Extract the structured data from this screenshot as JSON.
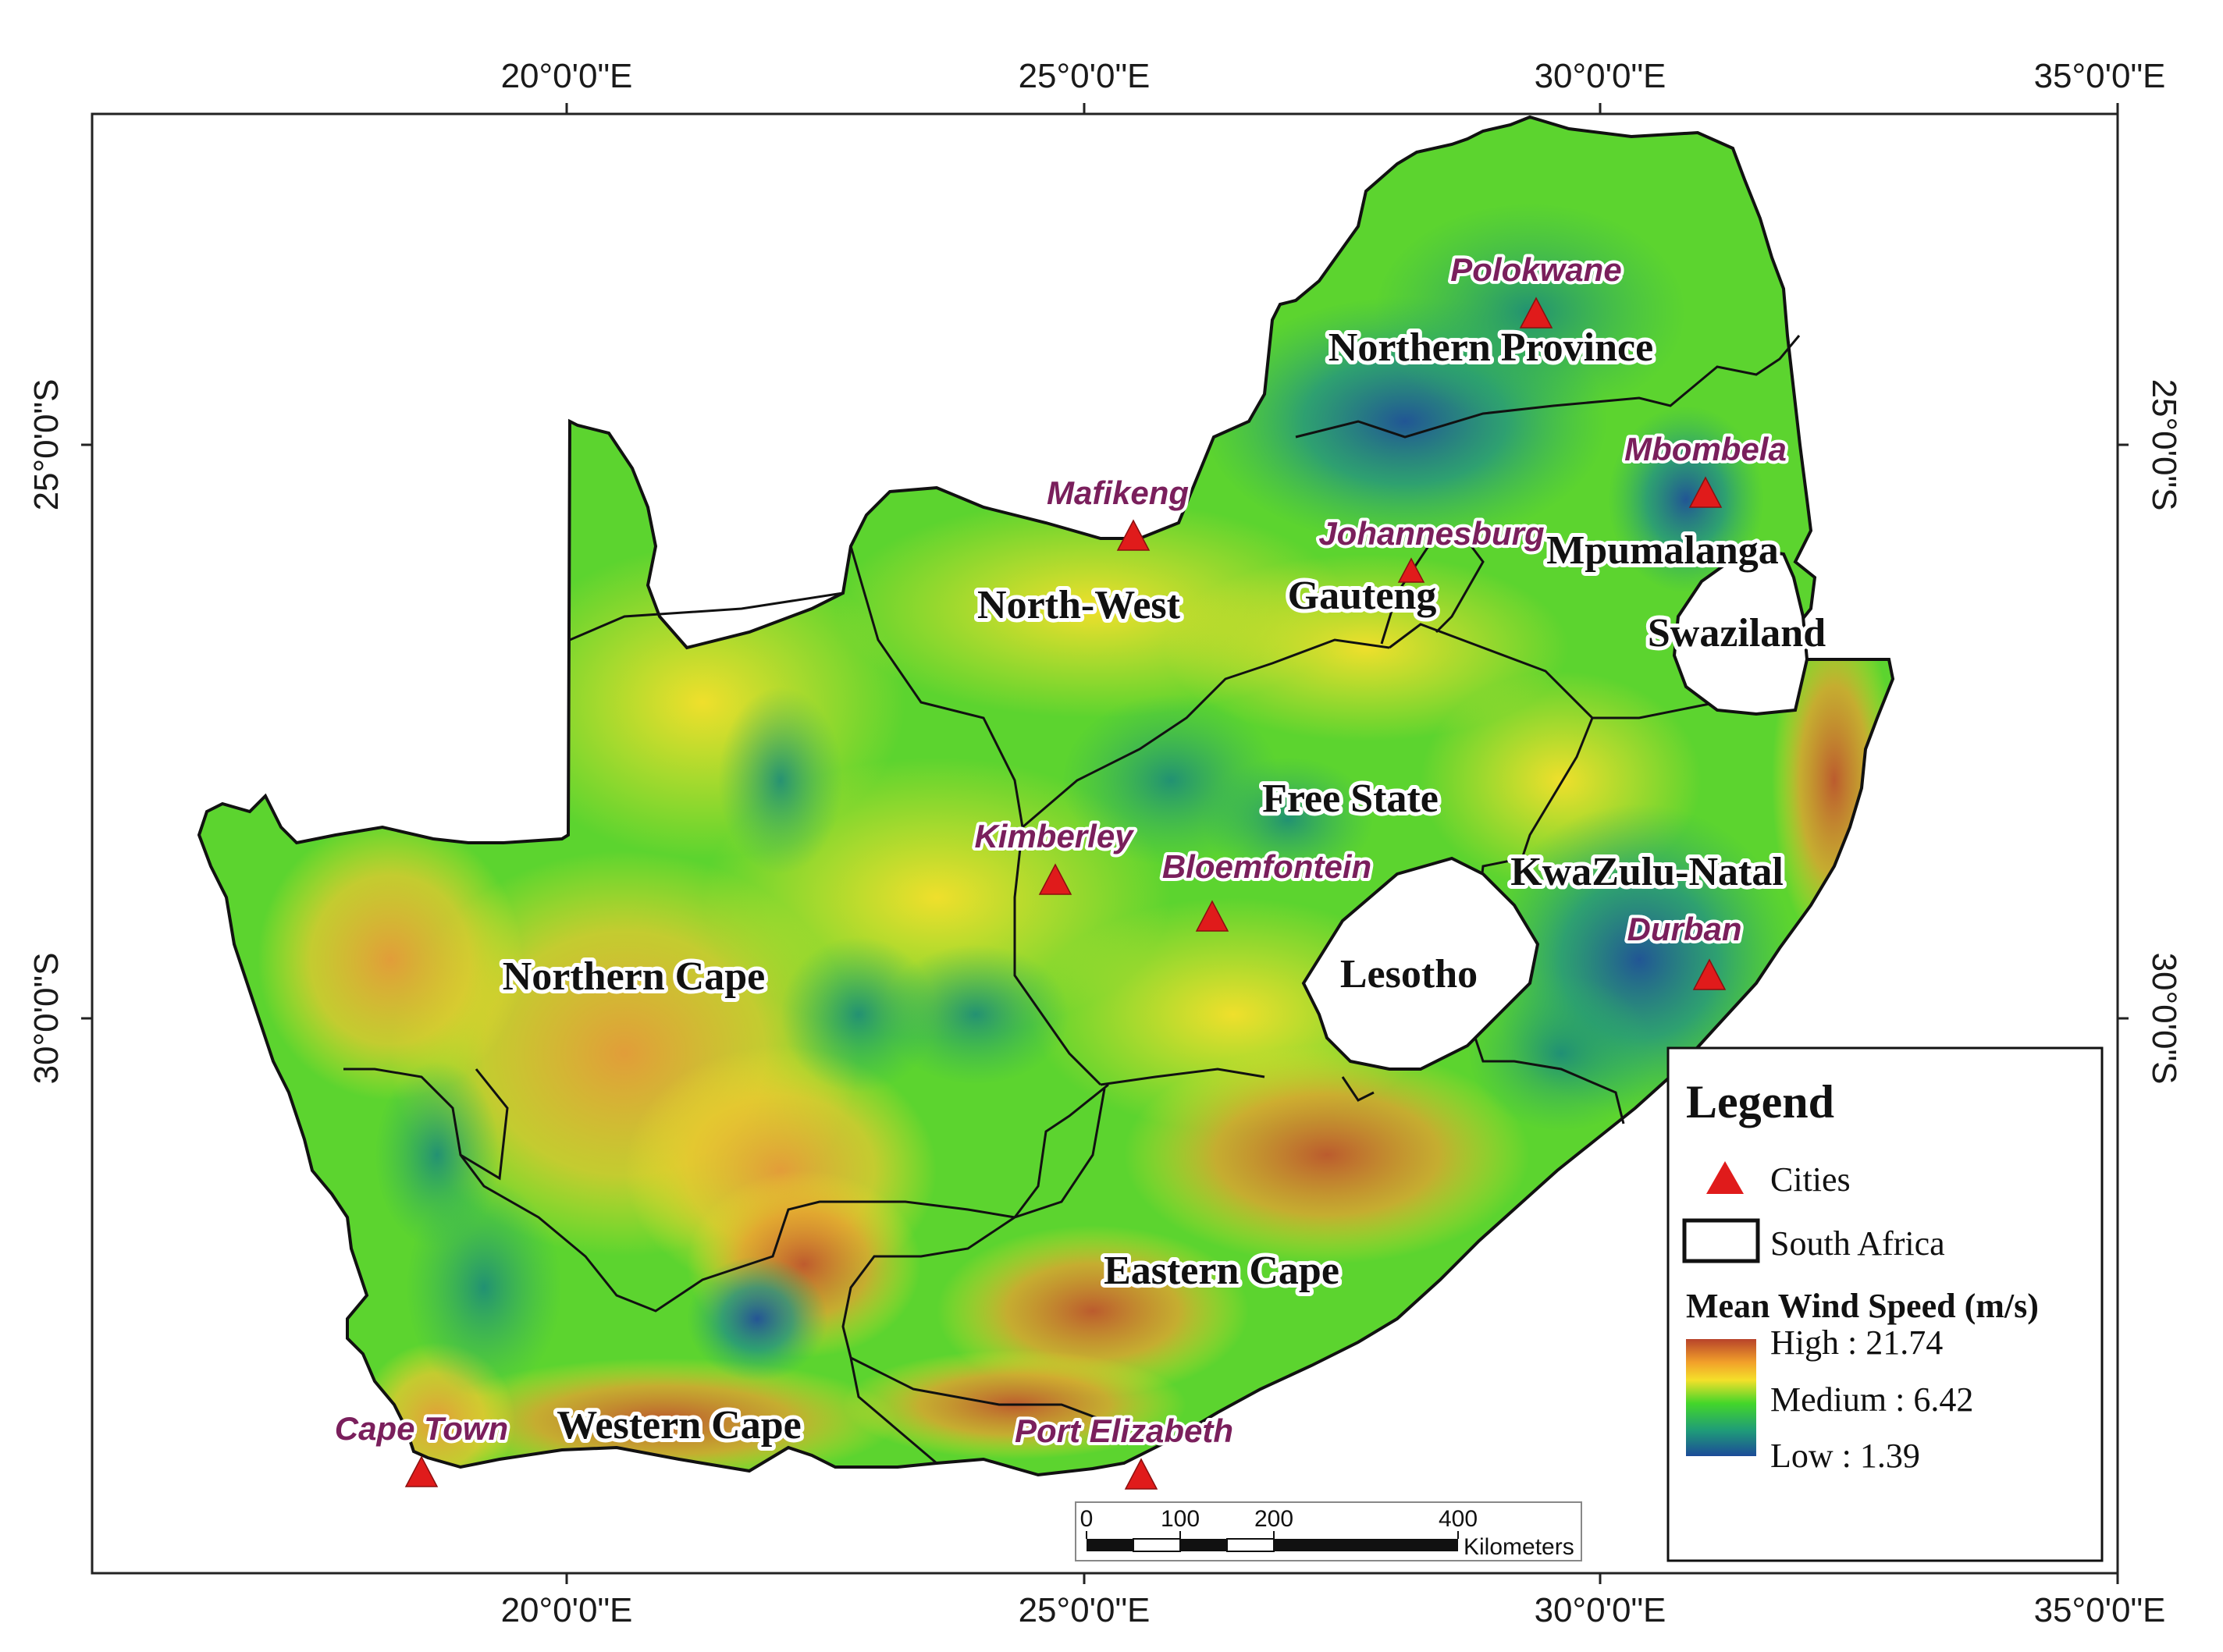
{
  "graticule": {
    "top_labels": [
      "20°0'0\"E",
      "25°0'0\"E",
      "30°0'0\"E",
      "35°0'0\"E"
    ],
    "bottom_labels": [
      "20°0'0\"E",
      "25°0'0\"E",
      "30°0'0\"E",
      "35°0'0\"E"
    ],
    "left_labels": [
      "25°0'0\"S",
      "30°0'0\"S"
    ],
    "right_labels": [
      "25°0'0\"S",
      "30°0'0\"S"
    ]
  },
  "provinces": {
    "northern_province": "Northern Province",
    "north_west": "North-West",
    "gauteng": "Gauteng",
    "mpumalanga": "Mpumalanga",
    "free_state": "Free State",
    "kwazulu_natal": "KwaZulu-Natal",
    "northern_cape": "Northern Cape",
    "eastern_cape": "Eastern Cape",
    "western_cape": "Western Cape"
  },
  "countries": {
    "swaziland": "Swaziland",
    "lesotho": "Lesotho"
  },
  "cities": {
    "polokwane": "Polokwane",
    "mbombela": "Mbombela",
    "mafikeng": "Mafikeng",
    "johannesburg": "Johannesburg",
    "kimberley": "Kimberley",
    "bloemfontein": "Bloemfontein",
    "durban": "Durban",
    "cape_town": "Cape Town",
    "port_elizabeth": "Port Elizabeth"
  },
  "scale_bar": {
    "ticks": [
      "0",
      "100",
      "200",
      "400"
    ],
    "unit": "Kilometers"
  },
  "legend": {
    "title": "Legend",
    "cities_label": "Cities",
    "boundary_label": "South Africa",
    "ramp_title": "Mean Wind Speed (m/s)",
    "high_label": "High : 21.74",
    "medium_label": "Medium : 6.42",
    "low_label": "Low : 1.39",
    "high_value": 21.74,
    "medium_value": 6.42,
    "low_value": 1.39
  },
  "colors": {
    "ramp_high": "#c0392b",
    "ramp_upper": "#f5a623",
    "ramp_mid_high": "#f4e02a",
    "ramp_medium": "#43d62a",
    "ramp_mid_low": "#1fa06a",
    "ramp_low": "#1e4f9a",
    "city_marker": "#e01b1b",
    "city_label": "#7a1f5c"
  }
}
